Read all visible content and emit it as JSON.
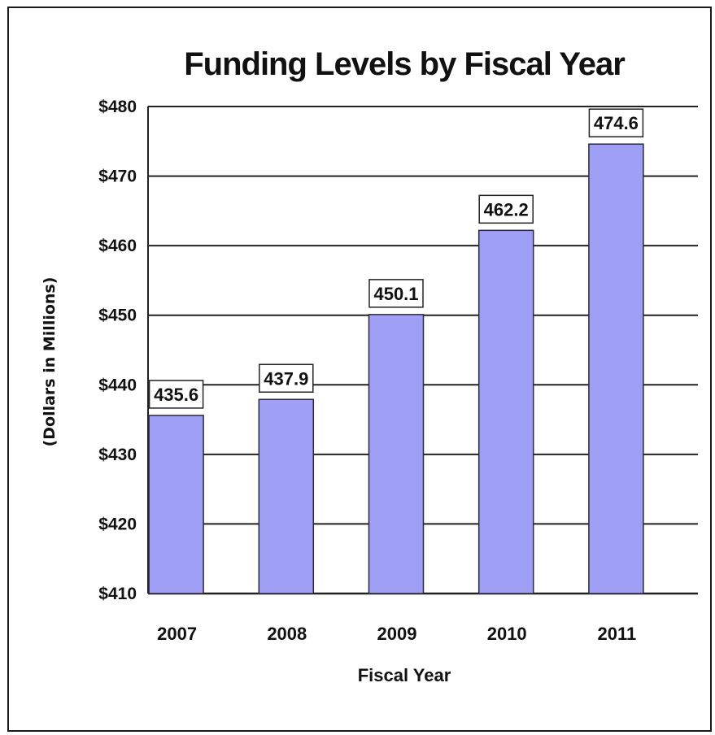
{
  "chart_data": {
    "type": "bar",
    "title": "Funding Levels by Fiscal Year",
    "xlabel": "Fiscal Year",
    "ylabel": "(Dollars in Millions)",
    "categories": [
      "2007",
      "2008",
      "2009",
      "2010",
      "2011"
    ],
    "values": [
      435.6,
      437.9,
      450.1,
      462.2,
      474.6
    ],
    "data_labels": [
      "435.6",
      "437.9",
      "450.1",
      "462.2",
      "474.6"
    ],
    "ylim": [
      410,
      480
    ],
    "yticks": [
      410,
      420,
      430,
      440,
      450,
      460,
      470,
      480
    ],
    "ytick_labels": [
      "$410",
      "$420",
      "$430",
      "$440",
      "$450",
      "$460",
      "$470",
      "$480"
    ],
    "grid": true,
    "legend": "none",
    "colors": {
      "bar_fill": "#9f9ff5",
      "bar_stroke": "#2a2a3a",
      "grid": "#222222"
    }
  }
}
